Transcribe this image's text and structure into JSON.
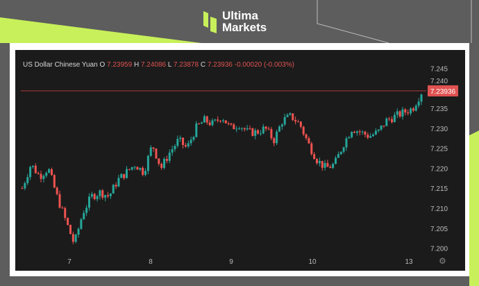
{
  "brand": {
    "line1": "Ultima",
    "line2": "Markets",
    "accent": "#c8f05a"
  },
  "legend": {
    "symbol": "US Dollar Chinese Yuan",
    "o_label": "O",
    "open": "7.23959",
    "h_label": "H",
    "high": "7.24086",
    "l_label": "L",
    "low": "7.23878",
    "c_label": "C",
    "close": "7.23936",
    "change": "-0.00020 (-0.003%)"
  },
  "chart_data": {
    "type": "candlestick",
    "ylim": [
      7.1975,
      7.2475
    ],
    "y_ticks": [
      "7.245",
      "7.240",
      "7.235",
      "7.230",
      "7.225",
      "7.220",
      "7.215",
      "7.210",
      "7.205",
      "7.200"
    ],
    "x_ticks": [
      "7",
      "8",
      "9",
      "10",
      "13"
    ],
    "last_price": 7.23936,
    "last_price_label": "7.23936",
    "grid": false,
    "up_color": "#26a69a",
    "down_color": "#ef5350",
    "closes": [
      7.215,
      7.221,
      7.218,
      7.22,
      7.213,
      7.207,
      7.201,
      7.209,
      7.213,
      7.214,
      7.213,
      7.217,
      7.219,
      7.221,
      7.219,
      7.226,
      7.22,
      7.224,
      7.227,
      7.225,
      7.23,
      7.232,
      7.231,
      7.233,
      7.23,
      7.231,
      7.229,
      7.229,
      7.23,
      7.227,
      7.232,
      7.233,
      7.231,
      7.226,
      7.222,
      7.22,
      7.221,
      7.226,
      7.23,
      7.229,
      7.228,
      7.229,
      7.232,
      7.233,
      7.234,
      7.235,
      7.239
    ]
  }
}
